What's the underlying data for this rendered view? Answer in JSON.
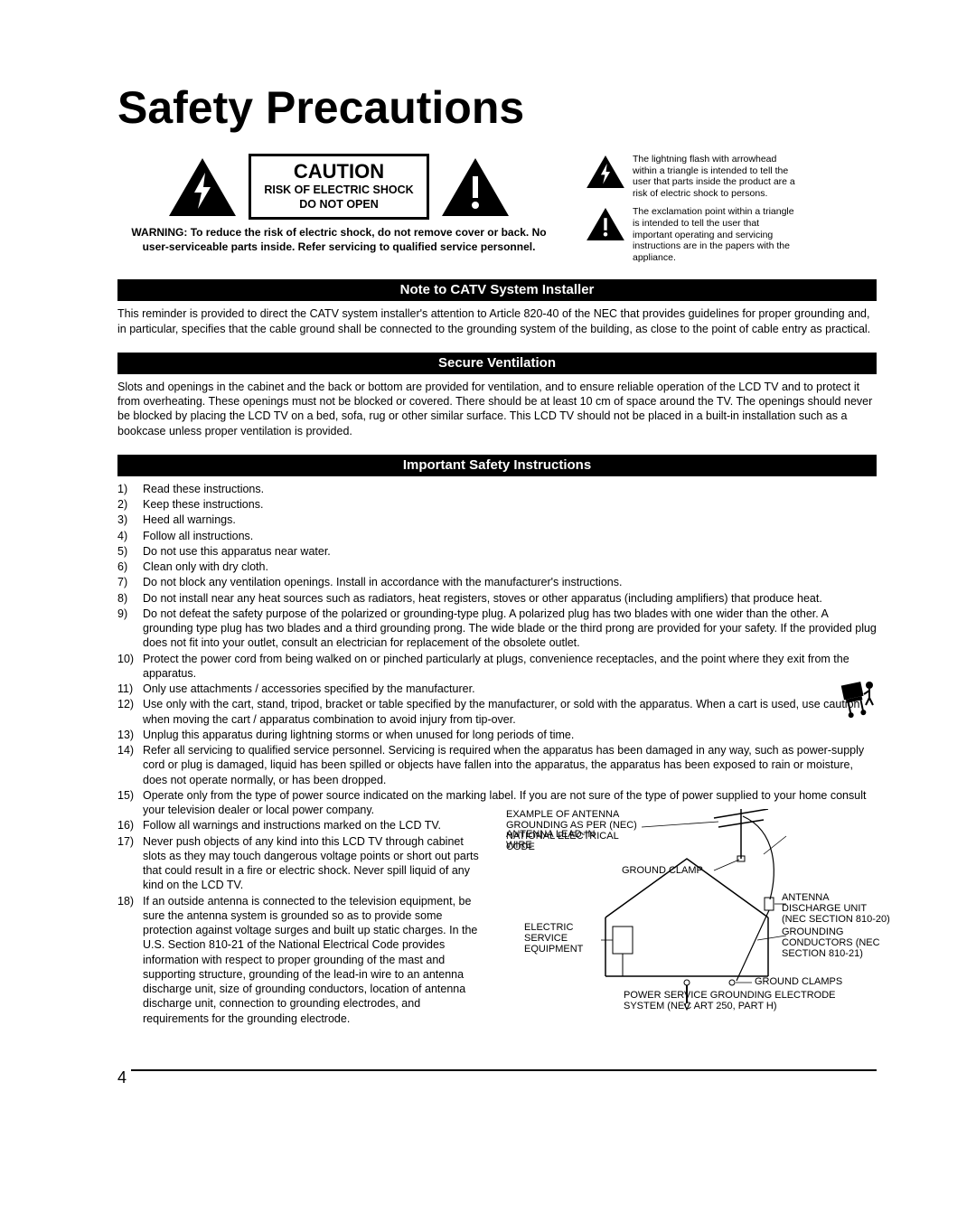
{
  "title": "Safety Precautions",
  "caution": {
    "heading": "CAUTION",
    "sub1": "RISK OF ELECTRIC SHOCK",
    "sub2": "DO NOT OPEN",
    "warning": "WARNING: To reduce the risk of electric shock, do not remove cover or back. No user-serviceable parts inside. Refer servicing to qualified service personnel."
  },
  "iconNotes": {
    "bolt": "The lightning flash with arrowhead within a triangle is intended to tell the user that parts inside the product are a risk of electric shock to persons.",
    "excl": "The exclamation point within a triangle is intended to tell the user that important operating and servicing instructions are in the papers with the appliance."
  },
  "sections": {
    "catv": {
      "title": "Note to CATV System Installer",
      "text": "This reminder is provided to direct the CATV system installer's attention to Article 820-40 of the NEC that provides guidelines for proper grounding and, in particular, specifies that the cable ground shall be connected to the grounding system of the building, as close to the point of cable entry as practical."
    },
    "vent": {
      "title": "Secure Ventilation",
      "text": "Slots and openings in the cabinet and the back or bottom are provided for ventilation, and to ensure reliable operation of the LCD TV and to protect it from overheating. These openings must not be blocked or covered. There should be at least 10 cm of space around the TV. The openings should never be blocked by placing the LCD TV on a bed, sofa, rug or other similar surface. This LCD TV should not be placed in a built-in installation such as a bookcase unless proper ventilation is provided."
    },
    "instr": {
      "title": "Important Safety Instructions"
    }
  },
  "instructions": [
    "Read these instructions.",
    "Keep these instructions.",
    "Heed all warnings.",
    "Follow all instructions.",
    "Do not use this apparatus near water.",
    "Clean only with dry cloth.",
    "Do not block any ventilation openings. Install in accordance with the manufacturer's instructions.",
    "Do not install near any heat sources such as radiators, heat registers, stoves or other apparatus (including amplifiers) that produce heat.",
    "Do not defeat the safety purpose of the polarized or grounding-type plug. A polarized plug has two blades with one wider than the other. A grounding type plug has two blades and a third grounding prong. The wide blade or the third prong are provided for your safety. If the provided plug does not fit into your outlet, consult an electrician for replacement of the obsolete outlet.",
    "Protect the power cord from being walked on or pinched particularly at plugs, convenience receptacles, and the point where they exit from the apparatus.",
    "Only use attachments / accessories specified by the manufacturer.",
    "Use only with the cart, stand, tripod, bracket or table specified by the manufacturer, or sold with the apparatus. When a cart is used, use caution when moving the cart / apparatus combination to avoid injury from tip-over.",
    "Unplug this apparatus during lightning storms or when unused for long periods of time.",
    "Refer all servicing to qualified service personnel. Servicing is required when the apparatus has been damaged in any way, such as power-supply cord or plug is damaged, liquid has been spilled or objects have fallen into the apparatus, the apparatus has been exposed to rain or moisture, does not operate normally, or has been dropped.",
    "Operate only from the type of power source indicated on the marking label. If you are not sure of the type of power supplied to your home consult your television dealer or local power company.",
    "Follow all warnings and instructions marked on the LCD TV.",
    "Never push objects of any kind into this LCD TV through cabinet slots as they may touch dangerous voltage points or short out parts that could result in a fire or electric shock. Never spill liquid of any kind on the LCD TV.",
    "If an outside antenna is connected to the television equipment, be sure the antenna system is grounded so as to provide some protection against voltage surges and built up static charges. In the U.S. Section 810-21 of the National Electrical Code provides information with respect to proper grounding of the mast and supporting structure, grounding of the lead-in wire to an antenna discharge unit, size of grounding conductors, location of antenna discharge unit, connection to grounding electrodes, and requirements for the grounding electrode."
  ],
  "antenna": {
    "example": "EXAMPLE OF ANTENNA GROUNDING AS PER (NEC) NATIONAL ELECTRICAL CODE",
    "leadin": "ANTENNA LEAD-IN WIRE",
    "clamp1": "GROUND CLAMP",
    "discharge": "ANTENNA DISCHARGE UNIT (NEC SECTION 810-20)",
    "conductors": "GROUNDING CONDUCTORS (NEC SECTION 810-21)",
    "service": "ELECTRIC SERVICE EQUIPMENT",
    "clamps": "GROUND CLAMPS",
    "electrode": "POWER SERVICE GROUNDING ELECTRODE SYSTEM (NEC ART 250, PART H)"
  },
  "pageNumber": "4",
  "colors": {
    "fg": "#000000",
    "bg": "#ffffff"
  }
}
